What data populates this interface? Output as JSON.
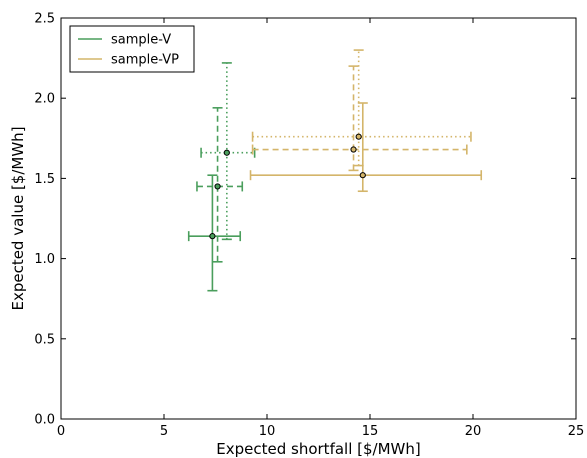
{
  "chart_data": {
    "type": "scatter",
    "title": "",
    "xlabel": "Expected shortfall [$/MWh]",
    "ylabel": "Expected value [$/MWh]",
    "xlim": [
      0,
      25
    ],
    "ylim": [
      0,
      2.5
    ],
    "xticks": [
      0,
      5,
      10,
      15,
      20,
      25
    ],
    "yticks": [
      0.0,
      0.5,
      1.0,
      1.5,
      2.0,
      2.5
    ],
    "xtick_labels": [
      "0",
      "5",
      "10",
      "15",
      "20",
      "25"
    ],
    "ytick_labels": [
      "0.0",
      "0.5",
      "1.0",
      "1.5",
      "2.0",
      "2.5"
    ],
    "grid": false,
    "legend_position": "top-left",
    "series": [
      {
        "name": "sample-V",
        "color": "#4a9e5c",
        "points": [
          {
            "x": 7.35,
            "y": 1.14,
            "x_err": [
              6.2,
              8.7
            ],
            "y_err": [
              0.8,
              1.52
            ],
            "style": "solid"
          },
          {
            "x": 7.6,
            "y": 1.45,
            "x_err": [
              6.6,
              8.8
            ],
            "y_err": [
              0.98,
              1.94
            ],
            "style": "dashed"
          },
          {
            "x": 8.05,
            "y": 1.66,
            "x_err": [
              6.8,
              9.4
            ],
            "y_err": [
              1.12,
              2.22
            ],
            "style": "dotted"
          }
        ]
      },
      {
        "name": "sample-VP",
        "color": "#d4b56a",
        "points": [
          {
            "x": 14.65,
            "y": 1.52,
            "x_err": [
              9.2,
              20.4
            ],
            "y_err": [
              1.42,
              1.97
            ],
            "style": "solid"
          },
          {
            "x": 14.2,
            "y": 1.68,
            "x_err": [
              9.3,
              19.7
            ],
            "y_err": [
              1.55,
              2.2
            ],
            "style": "dashed"
          },
          {
            "x": 14.45,
            "y": 1.76,
            "x_err": [
              9.3,
              19.9
            ],
            "y_err": [
              1.58,
              2.3
            ],
            "style": "dotted"
          }
        ]
      }
    ]
  }
}
